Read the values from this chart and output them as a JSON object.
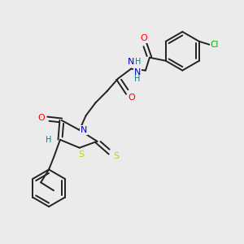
{
  "bg_color": "#ebebeb",
  "bond_color": "#222222",
  "atom_colors": {
    "O": "#ff0000",
    "N": "#0000cc",
    "S": "#cccc00",
    "Cl": "#00aa00",
    "H": "#008080",
    "C": "#222222"
  },
  "figsize": [
    3.0,
    3.0
  ],
  "dpi": 100
}
